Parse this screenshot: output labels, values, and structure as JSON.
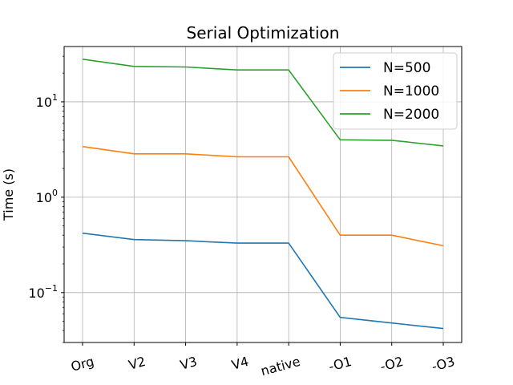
{
  "chart_data": {
    "type": "line",
    "title": "Serial Optimization",
    "xlabel": "",
    "ylabel": "Time (s)",
    "yscale": "log",
    "ylim": [
      0.03,
      38
    ],
    "grid": true,
    "legend_position": "top-right",
    "categories": [
      "Org",
      "V2",
      "V3",
      "V4",
      "native",
      "-O1",
      "-O2",
      "-O3"
    ],
    "yticks": [
      {
        "base": "10",
        "exp": "−1",
        "value": 0.1
      },
      {
        "base": "10",
        "exp": "0",
        "value": 1
      },
      {
        "base": "10",
        "exp": "1",
        "value": 10
      }
    ],
    "series": [
      {
        "name": "N=500",
        "color": "#1f77b4",
        "values": [
          0.42,
          0.36,
          0.35,
          0.33,
          0.33,
          0.055,
          0.048,
          0.042
        ]
      },
      {
        "name": "N=1000",
        "color": "#ff7f0e",
        "values": [
          3.4,
          2.85,
          2.85,
          2.65,
          2.65,
          0.4,
          0.4,
          0.31
        ]
      },
      {
        "name": "N=2000",
        "color": "#2ca02c",
        "values": [
          28,
          23.5,
          23.2,
          21.6,
          21.6,
          4.0,
          3.95,
          3.45
        ]
      }
    ]
  }
}
